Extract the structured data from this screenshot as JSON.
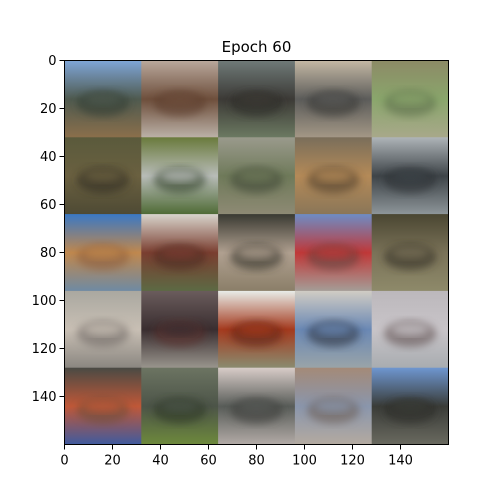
{
  "title": "Epoch 60",
  "axes": {
    "x_ticks": [
      "0",
      "20",
      "40",
      "60",
      "80",
      "100",
      "120",
      "140"
    ],
    "y_ticks": [
      "0",
      "20",
      "40",
      "60",
      "80",
      "100",
      "120",
      "140"
    ],
    "x_tick_values": [
      0,
      20,
      40,
      60,
      80,
      100,
      120,
      140
    ],
    "y_tick_values": [
      0,
      20,
      40,
      60,
      80,
      100,
      120,
      140
    ],
    "data_range": [
      0,
      160
    ]
  },
  "grid": {
    "rows": 5,
    "cols": 5,
    "tiles": [
      {
        "top": "#7fa6d8",
        "mid": "#4f5a4f",
        "bot": "#8b6f4b",
        "accent": "#2f3a33"
      },
      {
        "top": "#b9a89c",
        "mid": "#6e4f3c",
        "bot": "#bcb2a8",
        "accent": "#5a3b2a"
      },
      {
        "top": "#6f7a78",
        "mid": "#3c3a36",
        "bot": "#6c7a62",
        "accent": "#2b2a28"
      },
      {
        "top": "#c4b8a4",
        "mid": "#5c5c5a",
        "bot": "#a49886",
        "accent": "#343432"
      },
      {
        "top": "#8c8a66",
        "mid": "#8aa66c",
        "bot": "#a8a88a",
        "accent": "#5a6a4a"
      },
      {
        "top": "#5a5a3c",
        "mid": "#6a6040",
        "bot": "#4e4a34",
        "accent": "#2e2c22"
      },
      {
        "top": "#6a7a3c",
        "mid": "#b8bcb8",
        "bot": "#4e6a34",
        "accent": "#2a3a22"
      },
      {
        "top": "#9a9a8c",
        "mid": "#6f7a5a",
        "bot": "#8e8a74",
        "accent": "#3c4436"
      },
      {
        "top": "#7a6e5a",
        "mid": "#b48a58",
        "bot": "#8a7658",
        "accent": "#4a3a2a"
      },
      {
        "top": "#aeb4b8",
        "mid": "#3e4448",
        "bot": "#8e969a",
        "accent": "#2a2e30"
      },
      {
        "top": "#3a78c4",
        "mid": "#c0884e",
        "bot": "#6e8aa4",
        "accent": "#8a5a3a"
      },
      {
        "top": "#d8d4cc",
        "mid": "#7a3e30",
        "bot": "#5c6a44",
        "accent": "#4a2a20"
      },
      {
        "top": "#3a3a32",
        "mid": "#b0a090",
        "bot": "#8a7e68",
        "accent": "#2a2a24"
      },
      {
        "top": "#6e8cc4",
        "mid": "#c03838",
        "bot": "#a49e98",
        "accent": "#5c4440"
      },
      {
        "top": "#4a4632",
        "mid": "#7a7258",
        "bot": "#8e8a6a",
        "accent": "#2e2c20"
      },
      {
        "top": "#aaa8a0",
        "mid": "#c8bfb4",
        "bot": "#8a8680",
        "accent": "#6a6460"
      },
      {
        "top": "#6a5c5c",
        "mid": "#3a2e30",
        "bot": "#9a968e",
        "accent": "#5a2e2a"
      },
      {
        "top": "#e8ece8",
        "mid": "#a43a1e",
        "bot": "#8a8c70",
        "accent": "#5a2414"
      },
      {
        "top": "#d0ccc4",
        "mid": "#6a88b4",
        "bot": "#9aa4a8",
        "accent": "#2a2e38"
      },
      {
        "top": "#bcb8bc",
        "mid": "#c8c4c8",
        "bot": "#a8acb0",
        "accent": "#5a4a48"
      },
      {
        "top": "#4a4a44",
        "mid": "#c05838",
        "bot": "#3e5aa0",
        "accent": "#6a4e38"
      },
      {
        "top": "#6c7462",
        "mid": "#4c5448",
        "bot": "#6e8a3c",
        "accent": "#2a3424"
      },
      {
        "top": "#d8ccc8",
        "mid": "#585c58",
        "bot": "#b4aca8",
        "accent": "#3a3a38"
      },
      {
        "top": "#a48a78",
        "mid": "#8a96ac",
        "bot": "#b4aaa0",
        "accent": "#6a5a50"
      },
      {
        "top": "#6e96d0",
        "mid": "#3a3c38",
        "bot": "#6a6a60",
        "accent": "#2a2a26"
      }
    ]
  }
}
